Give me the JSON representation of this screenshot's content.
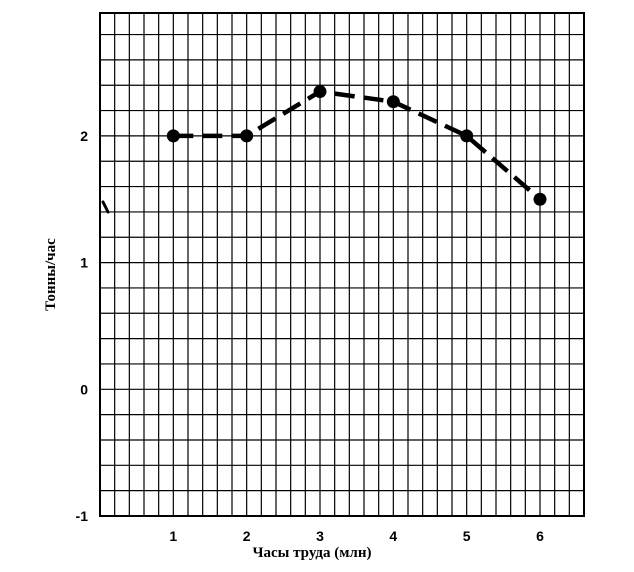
{
  "chart_data": {
    "type": "line",
    "xlabel": "Часы труда (млн)",
    "ylabel": "Тонны/час",
    "x_ticks": [
      1,
      2,
      3,
      4,
      5,
      6
    ],
    "y_ticks": [
      -1,
      0,
      1,
      2
    ],
    "xlim": [
      0,
      6.6
    ],
    "ylim": [
      -1,
      2.97
    ],
    "grid": true,
    "line_style": "dashed",
    "series": [
      {
        "x": [
          1,
          2,
          3,
          4,
          5,
          6
        ],
        "y": [
          2.0,
          2.0,
          2.35,
          2.27,
          2.0,
          1.5
        ]
      }
    ]
  }
}
